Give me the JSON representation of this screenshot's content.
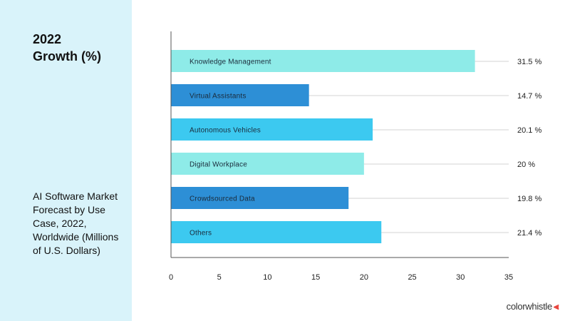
{
  "panel": {
    "title_line1": "2022",
    "title_line2": "Growth (%)",
    "description": "AI Software Market Forecast by Use Case, 2022, Worldwide (Millions of U.S. Dollars)"
  },
  "brand": {
    "name": "colorwhistle",
    "icon": "whistle-icon",
    "icon_color": "#e8423a"
  },
  "chart_data": {
    "type": "bar",
    "orientation": "horizontal",
    "title": "",
    "xlabel": "",
    "ylabel": "",
    "xlim": [
      0,
      35
    ],
    "xticks": [
      0,
      5,
      10,
      15,
      20,
      25,
      30,
      35
    ],
    "grid": false,
    "categories": [
      "Knowledge Management",
      "Virtual Assistants",
      "Autonomous Vehicles",
      "Digital Workplace",
      "Crowdsourced Data",
      "Others"
    ],
    "values": [
      31.5,
      14.7,
      20.1,
      20,
      19.8,
      21.4
    ],
    "bar_values_estimated": [
      31.5,
      14.3,
      20.9,
      20.0,
      18.4,
      21.8
    ],
    "value_labels": [
      "31.5 %",
      "14.7 %",
      "20.1 %",
      "20 %",
      "19.8 %",
      "21.4 %"
    ],
    "colors": [
      "#8eebe8",
      "#2d8fd6",
      "#3cc9f0",
      "#8eebe8",
      "#2d8fd6",
      "#3cc9f0"
    ]
  }
}
